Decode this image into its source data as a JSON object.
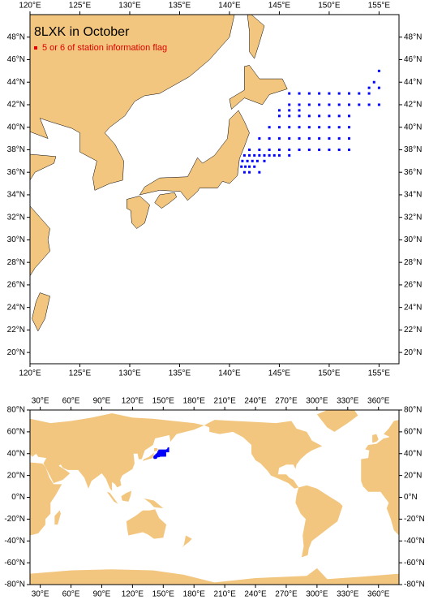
{
  "title": "8LXK in October",
  "legend": "5 or 6 of station information flag",
  "points": {
    "lon": [
      146,
      147,
      148,
      149,
      150,
      151,
      152,
      153,
      154,
      146,
      147,
      148,
      149,
      150,
      151,
      152,
      153,
      154,
      155,
      145,
      146,
      147,
      148,
      149,
      150,
      151,
      152,
      144,
      145,
      146,
      147,
      148,
      149,
      150,
      151,
      152,
      143,
      144,
      145,
      146,
      147,
      148,
      149,
      150,
      151,
      152,
      142,
      143,
      144,
      145,
      146,
      147,
      148,
      149,
      150,
      151,
      152,
      141.5,
      142,
      142.5,
      143,
      143.5,
      144,
      144.5,
      145,
      146,
      141.3,
      141.8,
      142.3,
      142.8,
      143.5,
      141.2,
      141.6,
      142,
      142.5,
      141.5,
      142,
      143,
      154.5,
      155,
      154,
      155,
      145,
      146,
      147
    ],
    "lat": [
      43,
      43,
      43,
      43,
      43,
      43,
      43,
      43,
      43,
      42,
      42,
      42,
      42,
      42,
      42,
      42,
      42,
      42,
      42,
      41,
      41,
      41,
      41,
      41,
      41,
      41,
      41,
      40,
      40,
      40,
      40,
      40,
      40,
      40,
      40,
      40,
      39,
      39,
      39,
      39,
      39,
      39,
      39,
      39,
      39,
      39,
      38,
      38,
      38,
      38,
      38,
      38,
      38,
      38,
      38,
      38,
      38,
      37.5,
      37.5,
      37.5,
      37.5,
      37.5,
      37.5,
      37.5,
      37.5,
      37.5,
      37,
      37,
      37,
      37,
      37,
      36.5,
      36.5,
      36.5,
      36.5,
      36,
      36,
      36,
      44,
      45,
      43.5,
      43.5,
      41.5,
      41.5,
      41.5
    ]
  },
  "regional_map": {
    "xlim": [
      120,
      157
    ],
    "ylim": [
      19,
      50
    ],
    "xticks": [
      {
        "value": 120,
        "label": "120°E"
      },
      {
        "value": 125,
        "label": "125°E"
      },
      {
        "value": 130,
        "label": "130°E"
      },
      {
        "value": 135,
        "label": "135°E"
      },
      {
        "value": 140,
        "label": "140°E"
      },
      {
        "value": 145,
        "label": "145°E"
      },
      {
        "value": 150,
        "label": "150°E"
      },
      {
        "value": 155,
        "label": "155°E"
      }
    ],
    "yticks": [
      {
        "value": 20,
        "label": "20°N"
      },
      {
        "value": 22,
        "label": "22°N"
      },
      {
        "value": 24,
        "label": "24°N"
      },
      {
        "value": 26,
        "label": "26°N"
      },
      {
        "value": 28,
        "label": "28°N"
      },
      {
        "value": 30,
        "label": "30°N"
      },
      {
        "value": 32,
        "label": "32°N"
      },
      {
        "value": 34,
        "label": "34°N"
      },
      {
        "value": 36,
        "label": "36°N"
      },
      {
        "value": 38,
        "label": "38°N"
      },
      {
        "value": 40,
        "label": "40°N"
      },
      {
        "value": 42,
        "label": "42°N"
      },
      {
        "value": 44,
        "label": "44°N"
      },
      {
        "value": 46,
        "label": "46°N"
      },
      {
        "value": 48,
        "label": "48°N"
      }
    ]
  },
  "global_map": {
    "xlim": [
      20,
      380
    ],
    "ylim": [
      -80,
      80
    ],
    "xticks": [
      {
        "value": 30,
        "label": "30°E"
      },
      {
        "value": 60,
        "label": "60°E"
      },
      {
        "value": 90,
        "label": "90°E"
      },
      {
        "value": 120,
        "label": "120°E"
      },
      {
        "value": 150,
        "label": "150°E"
      },
      {
        "value": 180,
        "label": "180°E"
      },
      {
        "value": 210,
        "label": "210°E"
      },
      {
        "value": 240,
        "label": "240°E"
      },
      {
        "value": 270,
        "label": "270°E"
      },
      {
        "value": 300,
        "label": "300°E"
      },
      {
        "value": 330,
        "label": "330°E"
      },
      {
        "value": 360,
        "label": "360°E"
      }
    ],
    "yticks": [
      {
        "value": -80,
        "label": "-80°N"
      },
      {
        "value": -60,
        "label": "-60°N"
      },
      {
        "value": -40,
        "label": "-40°N"
      },
      {
        "value": -20,
        "label": "-20°N"
      },
      {
        "value": 0,
        "label": "0°N"
      },
      {
        "value": 20,
        "label": "20°N"
      },
      {
        "value": 40,
        "label": "40°N"
      },
      {
        "value": 60,
        "label": "60°N"
      },
      {
        "value": 80,
        "label": "80°N"
      }
    ]
  }
}
